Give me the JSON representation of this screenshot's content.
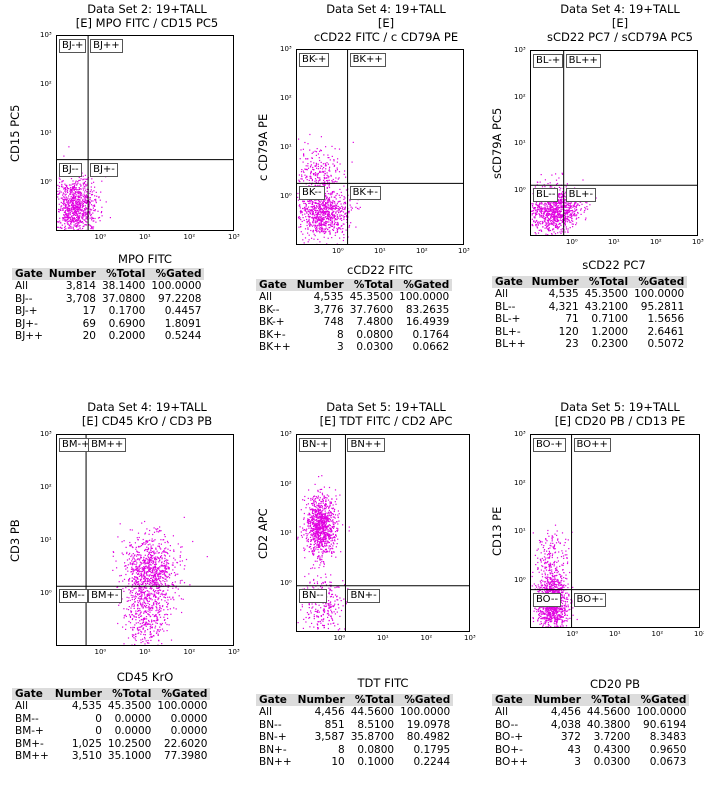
{
  "chart_data": [
    {
      "type": "scatter",
      "title": [
        "Data Set 2: 19+TALL",
        "[E] MPO FITC / CD15 PC5"
      ],
      "xlabel": "MPO FITC",
      "ylabel": "CD15 PC5",
      "xscale": "log",
      "yscale": "log",
      "xlim": [
        0.1,
        1000
      ],
      "ylim": [
        0.1,
        1000
      ],
      "xticks": [
        "10⁰",
        "10¹",
        "10²",
        "10³"
      ],
      "yticks": [
        "10³",
        "10²",
        "10¹",
        "10⁰"
      ],
      "gate_x": 0.5,
      "gate_y": 3,
      "gates": {
        "tl": "BJ-+",
        "tr": "BJ++",
        "bl": "BJ--",
        "br": "BJ+-"
      },
      "point_color": "#e000e0",
      "clusters": [
        {
          "cx": 0.25,
          "cy": 0.35,
          "sx": 0.25,
          "sy": 0.3,
          "n": 900
        }
      ],
      "table": {
        "headers": [
          "Gate",
          "Number",
          "%Total",
          "%Gated"
        ],
        "rows": [
          [
            "All",
            "3,814",
            "38.1400",
            "100.0000"
          ],
          [
            "BJ--",
            "3,708",
            "37.0800",
            "97.2208"
          ],
          [
            "BJ-+",
            "17",
            "0.1700",
            "0.4457"
          ],
          [
            "BJ+-",
            "69",
            "0.6900",
            "1.8091"
          ],
          [
            "BJ++",
            "20",
            "0.2000",
            "0.5244"
          ]
        ]
      }
    },
    {
      "type": "scatter",
      "title": [
        "Data Set 4: 19+TALL",
        "[E]",
        "cCD22 FITC / c CD79A PE"
      ],
      "xlabel": "cCD22 FITC",
      "ylabel": "c CD79A PE",
      "xscale": "log",
      "yscale": "log",
      "xlim": [
        0.1,
        1000
      ],
      "ylim": [
        0.1,
        1000
      ],
      "xticks": [
        "10⁰",
        "10¹",
        "10²",
        "10³"
      ],
      "yticks": [
        "10³",
        "10²",
        "10¹",
        "10⁰"
      ],
      "gate_x": 1.6,
      "gate_y": 1.9,
      "gates": {
        "tl": "BK-+",
        "tr": "BK++",
        "bl": "BK--",
        "br": "BK+-"
      },
      "point_color": "#e000e0",
      "clusters": [
        {
          "cx": 0.4,
          "cy": 0.5,
          "sx": 0.3,
          "sy": 0.25,
          "n": 800
        },
        {
          "cx": 0.3,
          "cy": 3,
          "sx": 0.3,
          "sy": 0.3,
          "n": 250
        }
      ],
      "table": {
        "headers": [
          "Gate",
          "Number",
          "%Total",
          "%Gated"
        ],
        "rows": [
          [
            "All",
            "4,535",
            "45.3500",
            "100.0000"
          ],
          [
            "BK--",
            "3,776",
            "37.7600",
            "83.2635"
          ],
          [
            "BK-+",
            "748",
            "7.4800",
            "16.4939"
          ],
          [
            "BK+-",
            "8",
            "0.0800",
            "0.1764"
          ],
          [
            "BK++",
            "3",
            "0.0300",
            "0.0662"
          ]
        ]
      }
    },
    {
      "type": "scatter",
      "title": [
        "Data Set 4: 19+TALL",
        "[E]",
        "sCD22 PC7 / sCD79A PC5"
      ],
      "xlabel": "sCD22 PC7",
      "ylabel": "sCD79A PC5",
      "xscale": "log",
      "yscale": "log",
      "xlim": [
        0.1,
        1000
      ],
      "ylim": [
        0.1,
        1000
      ],
      "xticks": [
        "10⁰",
        "10¹",
        "10²",
        "10³"
      ],
      "yticks": [
        "10³",
        "10²",
        "10¹",
        "10⁰"
      ],
      "gate_x": 0.6,
      "gate_y": 1.3,
      "gates": {
        "tl": "BL-+",
        "tr": "BL++",
        "bl": "BL--",
        "br": "BL+-"
      },
      "point_color": "#e000e0",
      "clusters": [
        {
          "cx": 0.35,
          "cy": 0.4,
          "sx": 0.3,
          "sy": 0.25,
          "n": 950
        }
      ],
      "table": {
        "headers": [
          "Gate",
          "Number",
          "%Total",
          "%Gated"
        ],
        "rows": [
          [
            "All",
            "4,535",
            "45.3500",
            "100.0000"
          ],
          [
            "BL--",
            "4,321",
            "43.2100",
            "95.2811"
          ],
          [
            "BL-+",
            "71",
            "0.7100",
            "1.5656"
          ],
          [
            "BL+-",
            "120",
            "1.2000",
            "2.6461"
          ],
          [
            "BL++",
            "23",
            "0.2300",
            "0.5072"
          ]
        ]
      }
    },
    {
      "type": "scatter",
      "title": [
        "Data Set 4: 19+TALL",
        "[E] CD45 KrO / CD3 PB"
      ],
      "xlabel": "CD45 KrO",
      "ylabel": "CD3 PB",
      "xscale": "log",
      "yscale": "log",
      "xlim": [
        0.1,
        1000
      ],
      "ylim": [
        0.1,
        1000
      ],
      "xticks": [
        "10⁰",
        "10¹",
        "10²",
        "10³"
      ],
      "yticks": [
        "10³",
        "10²",
        "10¹",
        "10⁰"
      ],
      "gate_x": 0.45,
      "gate_y": 1.4,
      "gates": {
        "tl": "BM-+",
        "tr": "BM++",
        "bl": "BM--",
        "br": "BM+-"
      },
      "point_color": "#e000e0",
      "clusters": [
        {
          "cx": 12,
          "cy": 2.5,
          "sx": 0.3,
          "sy": 0.35,
          "n": 950
        },
        {
          "cx": 9,
          "cy": 0.35,
          "sx": 0.25,
          "sy": 0.3,
          "n": 300
        }
      ],
      "table": {
        "headers": [
          "Gate",
          "Number",
          "%Total",
          "%Gated"
        ],
        "rows": [
          [
            "All",
            "4,535",
            "45.3500",
            "100.0000"
          ],
          [
            "BM--",
            "0",
            "0.0000",
            "0.0000"
          ],
          [
            "BM-+",
            "0",
            "0.0000",
            "0.0000"
          ],
          [
            "BM+-",
            "1,025",
            "10.2500",
            "22.6020"
          ],
          [
            "BM++",
            "3,510",
            "35.1000",
            "77.3980"
          ]
        ]
      }
    },
    {
      "type": "scatter",
      "title": [
        "Data Set 5: 19+TALL",
        "[E] TDT FITC / CD2 APC"
      ],
      "xlabel": "TDT FITC",
      "ylabel": "CD2 APC",
      "xscale": "log",
      "yscale": "log",
      "xlim": [
        0.1,
        1000
      ],
      "ylim": [
        0.1,
        1000
      ],
      "xticks": [
        "10⁰",
        "10¹",
        "10²",
        "10³"
      ],
      "yticks": [
        "10³",
        "10²",
        "10¹",
        "10⁰"
      ],
      "gate_x": 1.3,
      "gate_y": 0.9,
      "gates": {
        "tl": "BN-+",
        "tr": "BN++",
        "bl": "BN--",
        "br": "BN+-"
      },
      "point_color": "#e000e0",
      "clusters": [
        {
          "cx": 0.35,
          "cy": 15,
          "sx": 0.18,
          "sy": 0.3,
          "n": 950
        },
        {
          "cx": 0.4,
          "cy": 0.4,
          "sx": 0.25,
          "sy": 0.3,
          "n": 250
        }
      ],
      "table": {
        "headers": [
          "Gate",
          "Number",
          "%Total",
          "%Gated"
        ],
        "rows": [
          [
            "All",
            "4,456",
            "44.5600",
            "100.0000"
          ],
          [
            "BN--",
            "851",
            "8.5100",
            "19.0978"
          ],
          [
            "BN-+",
            "3,587",
            "35.8700",
            "80.4982"
          ],
          [
            "BN+-",
            "8",
            "0.0800",
            "0.1795"
          ],
          [
            "BN++",
            "10",
            "0.1000",
            "0.2244"
          ]
        ]
      }
    },
    {
      "type": "scatter",
      "title": [
        "Data Set 5: 19+TALL",
        "[E] CD20 PB / CD13 PE"
      ],
      "xlabel": "CD20 PB",
      "ylabel": "CD13 PE",
      "xscale": "log",
      "yscale": "log",
      "xlim": [
        0.1,
        1000
      ],
      "ylim": [
        0.1,
        1000
      ],
      "xticks": [
        "10⁰",
        "10¹",
        "10²",
        "10³"
      ],
      "yticks": [
        "10³",
        "10²",
        "10¹",
        "10⁰"
      ],
      "gate_x": 0.9,
      "gate_y": 0.65,
      "gates": {
        "tl": "BO-+",
        "tr": "BO++",
        "bl": "BO--",
        "br": "BO+-"
      },
      "point_color": "#e000e0",
      "clusters": [
        {
          "cx": 0.3,
          "cy": 0.35,
          "sx": 0.18,
          "sy": 0.28,
          "n": 1000
        },
        {
          "cx": 0.3,
          "cy": 2.5,
          "sx": 0.2,
          "sy": 0.35,
          "n": 200
        }
      ],
      "table": {
        "headers": [
          "Gate",
          "Number",
          "%Total",
          "%Gated"
        ],
        "rows": [
          [
            "All",
            "4,456",
            "44.5600",
            "100.0000"
          ],
          [
            "BO--",
            "4,038",
            "40.3800",
            "90.6194"
          ],
          [
            "BO-+",
            "372",
            "3.7200",
            "8.3483"
          ],
          [
            "BO+-",
            "43",
            "0.4300",
            "0.9650"
          ],
          [
            "BO++",
            "3",
            "0.0300",
            "0.0673"
          ]
        ]
      }
    }
  ]
}
